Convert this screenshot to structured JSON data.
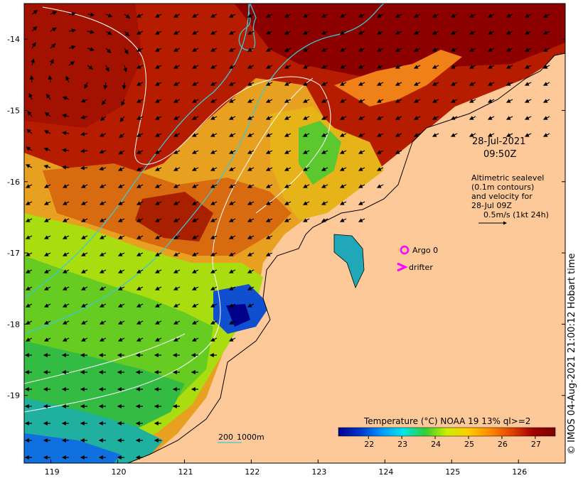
{
  "map": {
    "y_axis_labels": [
      "-14",
      "-15",
      "-16",
      "-17",
      "-18",
      "-19"
    ],
    "x_axis_labels": [
      "119",
      "120",
      "121",
      "122",
      "123",
      "124",
      "125",
      "126"
    ],
    "lon_range": [
      118.6,
      126.7
    ],
    "lat_range": [
      -19.95,
      -13.5
    ]
  },
  "annotation": {
    "date": "28-Jul-2021",
    "time": "09:50Z",
    "sealevel_line1": "Altimetric sealevel",
    "sealevel_line2": "(0.1m contours)",
    "sealevel_line3": "and velocity for",
    "sealevel_line4": "28-Jul 09Z",
    "scale_text": "0.5m/s (1kt 24h)"
  },
  "legend": {
    "argo": "Argo 0",
    "drifter": "drifter"
  },
  "bathymetry_legend": {
    "label_200": "200",
    "label_1000": "1000m"
  },
  "colorbar": {
    "title": "Temperature (°C) NOAA 19 13% ql>=2",
    "ticks": [
      "22",
      "23",
      "24",
      "25",
      "26",
      "27"
    ],
    "range": [
      21.1,
      27.6
    ],
    "colors": [
      "#00008c",
      "#0033cc",
      "#0099ff",
      "#00e6e6",
      "#33cc33",
      "#ccee00",
      "#ffcc00",
      "#ff8800",
      "#e04000",
      "#a00000",
      "#7a0000"
    ]
  },
  "credit": "© IMOS 04-Aug-2021 21:00:12 Hobart time",
  "colors": {
    "land": "#fdc999",
    "coast": "#000000",
    "contour_200": "#3ec7d6",
    "contour_1000": "#ffffff",
    "argo_marker": "#ff00ff",
    "drifter_marker": "#ff00ff"
  }
}
